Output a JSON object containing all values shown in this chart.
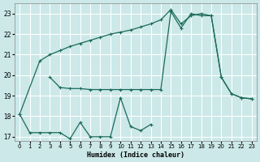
{
  "title": "",
  "xlabel": "Humidex (Indice chaleur)",
  "ylabel": "",
  "background_color": "#cce8e8",
  "grid_color": "#ffffff",
  "line_color": "#1a6b5a",
  "xlim": [
    -0.5,
    23.5
  ],
  "ylim": [
    16.8,
    23.5
  ],
  "yticks": [
    17,
    18,
    19,
    20,
    21,
    22,
    23
  ],
  "xticks": [
    0,
    1,
    2,
    3,
    4,
    5,
    6,
    7,
    8,
    9,
    10,
    11,
    12,
    13,
    14,
    15,
    16,
    17,
    18,
    19,
    20,
    21,
    22,
    23
  ],
  "line1_x": [
    0,
    2,
    3,
    4,
    5,
    6,
    7,
    8,
    9,
    10,
    11,
    12,
    13,
    14,
    15,
    16,
    17,
    18,
    19,
    20,
    21,
    22,
    23
  ],
  "line1_y": [
    18.1,
    20.7,
    21.0,
    21.2,
    21.4,
    21.55,
    21.7,
    21.85,
    22.0,
    22.1,
    22.2,
    22.35,
    22.5,
    22.7,
    23.2,
    22.5,
    22.9,
    23.0,
    22.9,
    19.9,
    19.1,
    18.9,
    18.85
  ],
  "line2_x": [
    3,
    4,
    5,
    6,
    7,
    8,
    9,
    10,
    11,
    12,
    13,
    14,
    15,
    16,
    17,
    18,
    19,
    20,
    21,
    22,
    23
  ],
  "line2_y": [
    19.9,
    19.4,
    19.35,
    19.35,
    19.3,
    19.3,
    19.3,
    19.3,
    19.3,
    19.3,
    19.3,
    19.3,
    23.1,
    22.3,
    23.0,
    22.9,
    22.9,
    19.9,
    19.1,
    18.9,
    18.85
  ],
  "line3_x": [
    0,
    1,
    2,
    3,
    4,
    5,
    6,
    7,
    8,
    9,
    10,
    11,
    12,
    13
  ],
  "line3_y": [
    18.1,
    17.2,
    17.2,
    17.2,
    17.2,
    16.9,
    17.7,
    17.0,
    17.0,
    17.0,
    18.9,
    17.5,
    17.3,
    17.6
  ]
}
